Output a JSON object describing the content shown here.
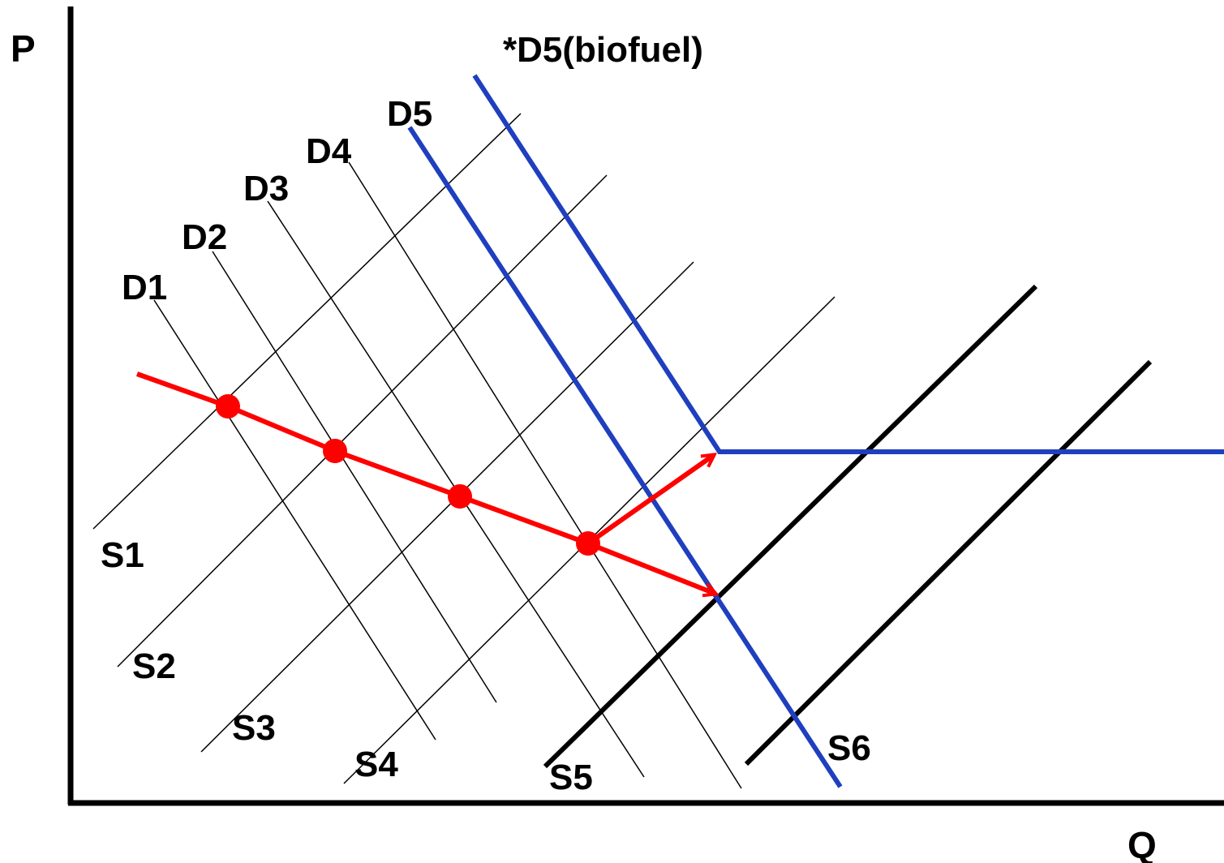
{
  "axes": {
    "y_label": "P",
    "x_label": "Q"
  },
  "annotation": "*D5(biofuel)",
  "demand_labels": [
    "D1",
    "D2",
    "D3",
    "D4",
    "D5"
  ],
  "supply_labels": [
    "S1",
    "S2",
    "S3",
    "S4",
    "S5",
    "S6"
  ],
  "colors": {
    "axis": "#000000",
    "thin_curves": "#000000",
    "thick_supply": "#000000",
    "biofuel_demand": "#1f3fbf",
    "equilibrium_path": "#ff0000"
  }
}
